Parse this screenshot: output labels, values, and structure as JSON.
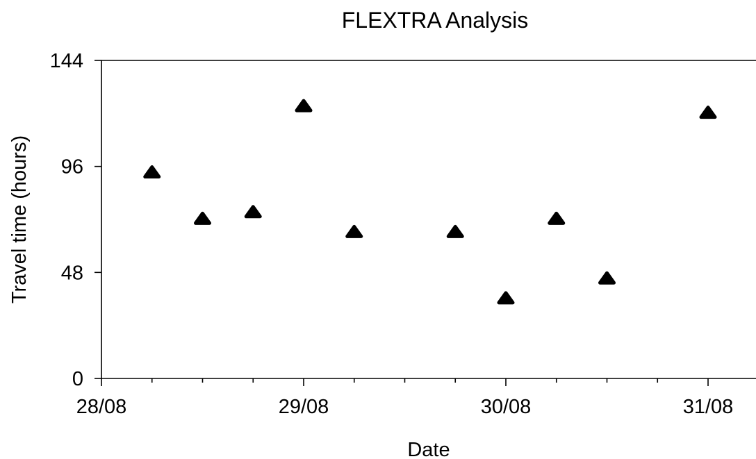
{
  "chart_data": {
    "type": "scatter",
    "title": "FLEXTRA Analysis",
    "xlabel": "Date",
    "ylabel": "Travel time (hours)",
    "x_axis": {
      "type": "date",
      "range": [
        "2005-08-28T00:00",
        "2005-08-31T00:00"
      ],
      "major_ticks": [
        {
          "value": "2005-08-28T00:00",
          "label": "28/08"
        },
        {
          "value": "2005-08-29T00:00",
          "label": "29/08"
        },
        {
          "value": "2005-08-30T00:00",
          "label": "30/08"
        },
        {
          "value": "2005-08-31T00:00",
          "label": "31/08"
        }
      ],
      "minor_tick_interval_hours": 6
    },
    "y_axis": {
      "range": [
        0,
        144
      ],
      "ticks": [
        {
          "value": 0,
          "label": "0"
        },
        {
          "value": 48,
          "label": "48"
        },
        {
          "value": 96,
          "label": "96"
        },
        {
          "value": 144,
          "label": "144"
        }
      ]
    },
    "grid": false,
    "marker": "triangle",
    "marker_color": "#000000",
    "points": [
      {
        "x": "2005-08-28T06:00",
        "y": 93
      },
      {
        "x": "2005-08-28T12:00",
        "y": 72
      },
      {
        "x": "2005-08-28T18:00",
        "y": 75
      },
      {
        "x": "2005-08-29T00:00",
        "y": 123
      },
      {
        "x": "2005-08-29T06:00",
        "y": 66
      },
      {
        "x": "2005-08-29T18:00",
        "y": 66
      },
      {
        "x": "2005-08-30T00:00",
        "y": 36
      },
      {
        "x": "2005-08-30T06:00",
        "y": 72
      },
      {
        "x": "2005-08-30T12:00",
        "y": 45
      },
      {
        "x": "2005-08-31T00:00",
        "y": 120
      }
    ]
  }
}
